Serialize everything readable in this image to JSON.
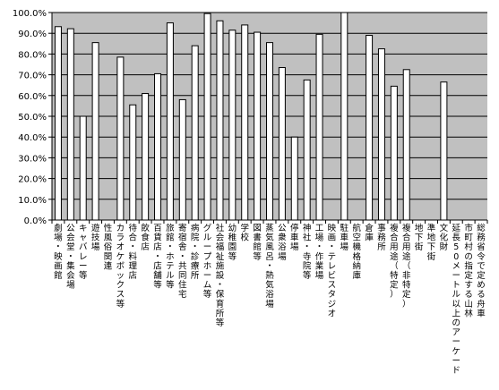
{
  "chart_data": {
    "type": "bar",
    "title": "",
    "xlabel": "",
    "ylabel": "",
    "ylim": [
      0,
      100
    ],
    "y_tick_labels": [
      "0.0%",
      "10.0%",
      "20.0%",
      "30.0%",
      "40.0%",
      "50.0%",
      "60.0%",
      "70.0%",
      "80.0%",
      "90.0%",
      "100.0%"
    ],
    "grid": "horizontal",
    "legend": "none",
    "plot_background": "#c0c0c0",
    "bar_color": "#ffffff",
    "categories": [
      "劇場・映画館",
      "公会堂・集会場",
      "キャバレー等",
      "遊技場",
      "性風俗関連",
      "カラオケボックス等",
      "待合・料理店",
      "飲食店",
      "百貨店・店舗等",
      "旅館・ホテル等",
      "寄宿舎・共同住宅",
      "病院・診療所",
      "グループホーム等",
      "社会福祉施設・保育所等",
      "幼稚園等",
      "学校",
      "図書館等",
      "蒸気風呂・熱気浴場",
      "公衆浴場",
      "停車場",
      "神社・寺院等",
      "工場・作業場",
      "映画・テレビスタジオ",
      "駐車場",
      "航空機格納庫",
      "倉庫",
      "事務所",
      "複合用途（特定）",
      "複合用途（非特定）",
      "地下街",
      "準地下街",
      "文化財",
      "延長50メートル以上のアーケード",
      "市町村の指定する山林",
      "総務省令で定める舟車"
    ],
    "values": [
      93.2,
      92.2,
      50.0,
      85.5,
      0,
      78.5,
      55.5,
      61.0,
      70.5,
      95.0,
      58.0,
      84.0,
      99.5,
      96.0,
      91.5,
      94.0,
      90.5,
      85.5,
      73.5,
      40.0,
      67.5,
      89.5,
      0,
      100.0,
      0,
      89.0,
      82.5,
      64.5,
      72.5,
      0,
      0,
      66.5,
      0,
      0,
      0
    ]
  }
}
